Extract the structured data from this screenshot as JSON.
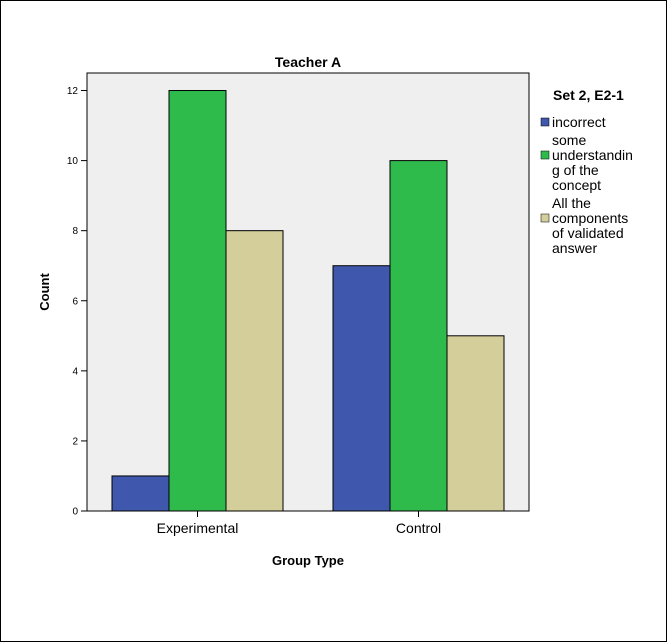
{
  "chart_data": {
    "type": "bar",
    "title": "Teacher A",
    "xlabel": "Group Type",
    "ylabel": "Count",
    "categories": [
      "Experimental",
      "Control"
    ],
    "ylim": [
      0,
      12.5
    ],
    "yticks": [
      0,
      2,
      4,
      6,
      8,
      10,
      12
    ],
    "grid": false,
    "legend_position": "right",
    "legend_title": "Set 2, E2-1",
    "series": [
      {
        "name": "incorrect",
        "legend_lines": [
          "incorrect"
        ],
        "color": "#3f57ad",
        "values": [
          1,
          7
        ]
      },
      {
        "name": "some understanding of the concept",
        "legend_lines": [
          "some",
          "understandin",
          "g of the",
          "concept"
        ],
        "color": "#2ebb4c",
        "values": [
          12,
          10
        ]
      },
      {
        "name": "All the components of validated answer",
        "legend_lines": [
          "All the",
          "components",
          "of validated",
          "answer"
        ],
        "color": "#d4ce9a",
        "values": [
          8,
          5
        ]
      }
    ],
    "plot_background": "#efefef",
    "bar_outline": "#000000"
  }
}
